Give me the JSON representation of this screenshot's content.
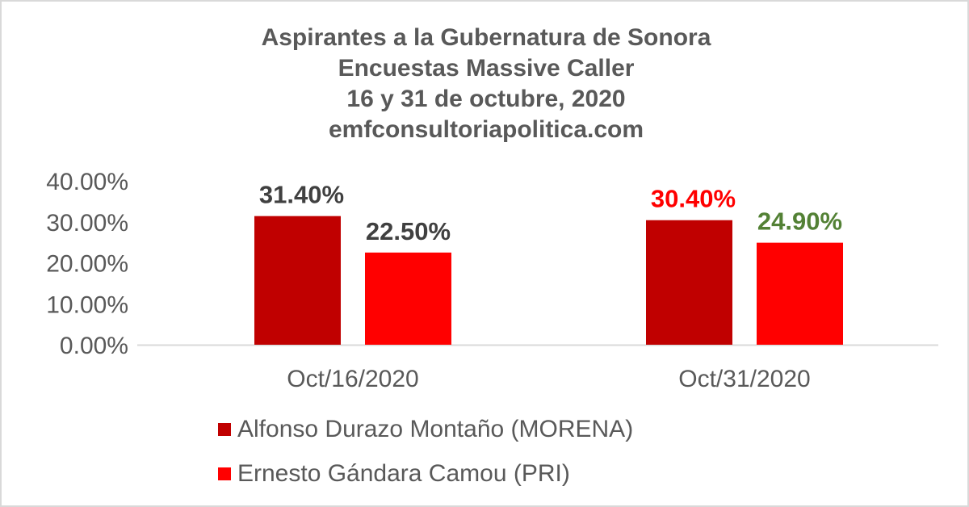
{
  "chart_data": {
    "type": "bar",
    "title_lines": [
      "Aspirantes a la Gubernatura de Sonora",
      "Encuestas Massive Caller",
      "16 y 31 de octubre, 2020",
      "emfconsultoriapolitica.com"
    ],
    "categories": [
      "Oct/16/2020",
      "Oct/31/2020"
    ],
    "series": [
      {
        "name": "Alfonso Durazo Montaño (MORENA)",
        "color": "#c00000",
        "values": [
          31.4,
          30.4
        ],
        "labels": [
          "31.40%",
          "30.40%"
        ],
        "label_colors": [
          "#404040",
          "#ff0000"
        ]
      },
      {
        "name": "Ernesto Gándara Camou (PRI)",
        "color": "#ff0000",
        "values": [
          22.5,
          24.9
        ],
        "labels": [
          "22.50%",
          "24.90%"
        ],
        "label_colors": [
          "#404040",
          "#538135"
        ]
      }
    ],
    "yticks": [
      "0.00%",
      "10.00%",
      "20.00%",
      "30.00%",
      "40.00%"
    ],
    "ylim": [
      0,
      40
    ],
    "grid": false,
    "legend": "bottom",
    "xlabel": "",
    "ylabel": ""
  }
}
